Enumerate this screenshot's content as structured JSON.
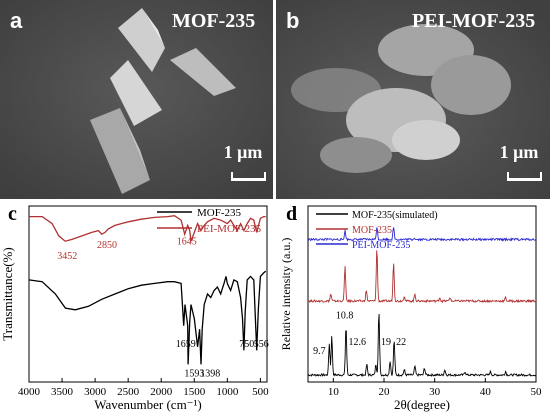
{
  "panels": {
    "a": {
      "letter": "a",
      "title": "MOF-235",
      "scale": "1 μm"
    },
    "b": {
      "letter": "b",
      "title": "PEI-MOF-235",
      "scale": "1 μm"
    },
    "c": {
      "letter": "c"
    },
    "d": {
      "letter": "d"
    }
  },
  "colors": {
    "black": "#000000",
    "red": "#b03030",
    "blue": "#2a2ad0"
  },
  "chart_data": [
    {
      "type": "line",
      "panel": "c",
      "xlabel": "Wavenumber (cm⁻¹)",
      "ylabel": "Transmittance(%)",
      "xlim": [
        4000,
        400
      ],
      "xticks": [
        4000,
        3500,
        3000,
        2500,
        2000,
        1500,
        1000,
        500
      ],
      "legend": [
        "MOF-235",
        "PEI-MOF-235"
      ],
      "legend_position": "top-right",
      "annotations_red": [
        "3452",
        "2850",
        "1645"
      ],
      "annotations_black": [
        "1659",
        "1593",
        "1398",
        "750",
        "556"
      ],
      "series": [
        {
          "name": "MOF-235",
          "color": "#000000",
          "x": [
            4000,
            3800,
            3600,
            3450,
            3300,
            3100,
            2900,
            2700,
            2500,
            2300,
            2100,
            1900,
            1800,
            1700,
            1660,
            1640,
            1600,
            1593,
            1570,
            1550,
            1500,
            1450,
            1420,
            1398,
            1380,
            1350,
            1300,
            1250,
            1200,
            1150,
            1100,
            1050,
            1020,
            1000,
            950,
            900,
            850,
            800,
            770,
            750,
            730,
            700,
            650,
            600,
            580,
            556,
            530,
            500,
            450,
            420
          ],
          "y": [
            0.58,
            0.57,
            0.5,
            0.42,
            0.41,
            0.43,
            0.47,
            0.5,
            0.53,
            0.55,
            0.56,
            0.57,
            0.57,
            0.56,
            0.32,
            0.44,
            0.32,
            0.1,
            0.34,
            0.44,
            0.36,
            0.2,
            0.3,
            0.1,
            0.3,
            0.44,
            0.5,
            0.48,
            0.52,
            0.54,
            0.5,
            0.56,
            0.6,
            0.56,
            0.52,
            0.58,
            0.57,
            0.48,
            0.36,
            0.18,
            0.4,
            0.58,
            0.6,
            0.58,
            0.4,
            0.18,
            0.42,
            0.6,
            0.62,
            0.63
          ]
        },
        {
          "name": "PEI-MOF-235",
          "color": "#b03030",
          "x": [
            4000,
            3800,
            3650,
            3550,
            3452,
            3350,
            3200,
            3050,
            2950,
            2900,
            2850,
            2800,
            2700,
            2500,
            2300,
            2100,
            1900,
            1800,
            1700,
            1645,
            1600,
            1570,
            1550,
            1500,
            1450,
            1400,
            1350,
            1300,
            1200,
            1100,
            1000,
            950,
            900,
            850,
            800,
            750,
            700,
            650,
            600,
            556,
            500,
            450,
            420
          ],
          "y": [
            0.94,
            0.94,
            0.9,
            0.83,
            0.8,
            0.81,
            0.83,
            0.85,
            0.86,
            0.84,
            0.85,
            0.87,
            0.89,
            0.91,
            0.925,
            0.935,
            0.94,
            0.945,
            0.92,
            0.84,
            0.89,
            0.86,
            0.8,
            0.85,
            0.9,
            0.86,
            0.89,
            0.91,
            0.93,
            0.92,
            0.9,
            0.92,
            0.89,
            0.86,
            0.9,
            0.86,
            0.9,
            0.93,
            0.92,
            0.85,
            0.93,
            0.94,
            0.94
          ]
        }
      ]
    },
    {
      "type": "line",
      "panel": "d",
      "xlabel": "2θ(degree)",
      "ylabel": "Relative intensity (a.u.)",
      "xlim": [
        5,
        50
      ],
      "xticks": [
        10,
        20,
        30,
        40,
        50
      ],
      "legend": [
        "MOF-235(simulated)",
        "MOF-235",
        "PEI-MOF-235"
      ],
      "legend_position": "top-left",
      "annotations": [
        "9.7",
        "10.8",
        "12.6",
        "19",
        "22"
      ],
      "series": [
        {
          "name": "MOF-235(simulated)",
          "color": "#000000",
          "baseline": 0.04,
          "peaks": [
            [
              9.2,
              0.18
            ],
            [
              9.7,
              0.22
            ],
            [
              12.5,
              0.28
            ],
            [
              16.6,
              0.06
            ],
            [
              18.4,
              0.06
            ],
            [
              19.0,
              0.36
            ],
            [
              21.2,
              0.08
            ],
            [
              22.0,
              0.2
            ],
            [
              24.0,
              0.03
            ],
            [
              26.1,
              0.05
            ],
            [
              28.0,
              0.04
            ],
            [
              32.0,
              0.03
            ],
            [
              36.0,
              0.02
            ],
            [
              41.0,
              0.02
            ],
            [
              44.0,
              0.02
            ]
          ]
        },
        {
          "name": "MOF-235",
          "color": "#b03030",
          "baseline": 0.46,
          "peaks": [
            [
              9.5,
              0.04
            ],
            [
              12.3,
              0.2
            ],
            [
              16.5,
              0.06
            ],
            [
              18.6,
              0.3
            ],
            [
              21.9,
              0.22
            ],
            [
              24.0,
              0.03
            ],
            [
              26.1,
              0.04
            ],
            [
              31.0,
              0.02
            ],
            [
              33.0,
              0.02
            ],
            [
              44.0,
              0.02
            ]
          ]
        },
        {
          "name": "PEI-MOF-235",
          "color": "#2a2ad0",
          "baseline": 0.81,
          "peaks": [
            [
              12.3,
              0.05
            ],
            [
              18.6,
              0.07
            ],
            [
              21.9,
              0.07
            ],
            [
              26.0,
              0.01
            ]
          ]
        }
      ]
    }
  ]
}
